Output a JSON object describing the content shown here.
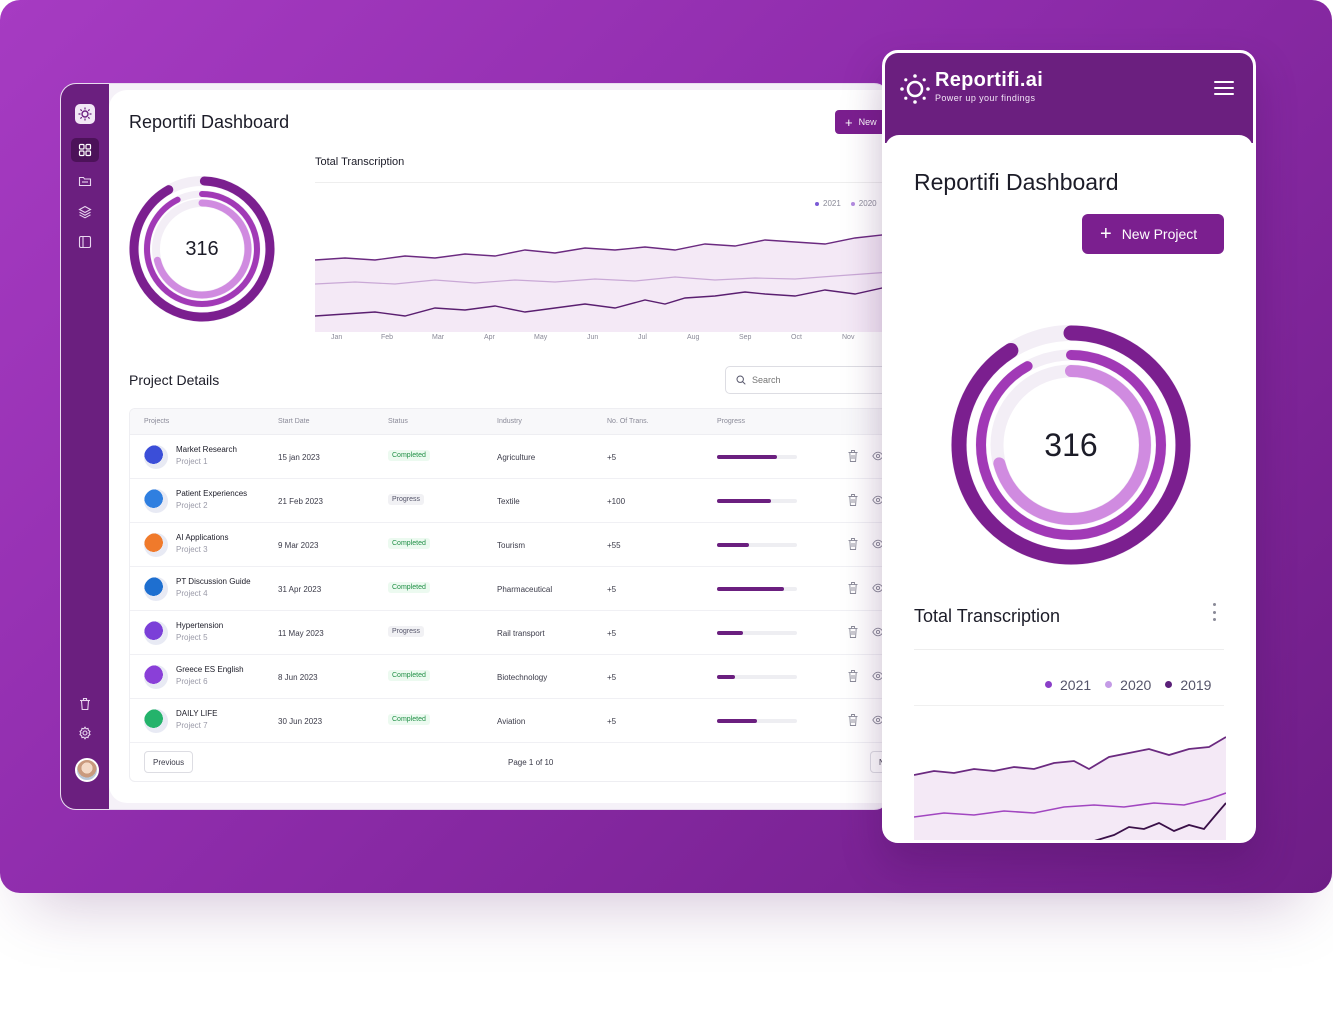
{
  "desktop": {
    "title": "Reportifi Dashboard",
    "new_button": "New",
    "total_count": "316",
    "chart_title": "Total Transcription",
    "legend": [
      {
        "label": "2021",
        "color": "#7b5bd6"
      },
      {
        "label": "2020",
        "color": "#b38be0"
      }
    ],
    "months": [
      "Jan",
      "Feb",
      "Mar",
      "Apr",
      "May",
      "Jun",
      "Jul",
      "Aug",
      "Sep",
      "Oct",
      "Nov"
    ],
    "project_details_title": "Project Details",
    "search_placeholder": "Search",
    "columns": [
      "Projects",
      "Start Date",
      "Status",
      "Industry",
      "No. Of Trans.",
      "Progress"
    ],
    "rows": [
      {
        "name": "Market Research",
        "sub": "Project 1",
        "date": "15 jan 2023",
        "status": "Completed",
        "industry": "Agriculture",
        "trans": "+5",
        "progress": 0.75,
        "icon_color": "#3b4ed8"
      },
      {
        "name": "Patient Experiences",
        "sub": "Project 2",
        "date": "21 Feb 2023",
        "status": "Progress",
        "industry": "Textile",
        "trans": "+100",
        "progress": 0.67,
        "icon_color": "#2f7fe0"
      },
      {
        "name": "AI Applications",
        "sub": "Project 3",
        "date": "9 Mar 2023",
        "status": "Completed",
        "industry": "Tourism",
        "trans": "+55",
        "progress": 0.4,
        "icon_color": "#f07a2b"
      },
      {
        "name": "PT Discussion Guide",
        "sub": "Project 4",
        "date": "31 Apr 2023",
        "status": "Completed",
        "industry": "Pharmaceutical",
        "trans": "+5",
        "progress": 0.84,
        "icon_color": "#1e6fd0"
      },
      {
        "name": "Hypertension",
        "sub": "Project 5",
        "date": "11 May 2023",
        "status": "Progress",
        "industry": "Rail transport",
        "trans": "+5",
        "progress": 0.32,
        "icon_color": "#7b3fd8"
      },
      {
        "name": "Greece ES English",
        "sub": "Project 6",
        "date": "8 Jun 2023",
        "status": "Completed",
        "industry": "Biotechnology",
        "trans": "+5",
        "progress": 0.22,
        "icon_color": "#8a3fd8"
      },
      {
        "name": "DAILY LIFE",
        "sub": "Project 7",
        "date": "30 Jun 2023",
        "status": "Completed",
        "industry": "Aviation",
        "trans": "+5",
        "progress": 0.5,
        "icon_color": "#24b36b"
      }
    ],
    "previous_label": "Previous",
    "page_label": "Page 1 of 10",
    "next_label": "N"
  },
  "mobile": {
    "brand": "Reportifi.ai",
    "tagline": "Power up your findings",
    "title": "Reportifi Dashboard",
    "new_button": "New Project",
    "total_count": "316",
    "chart_title": "Total Transcription",
    "legend": [
      {
        "label": "2021",
        "color": "#8a3fc8"
      },
      {
        "label": "2020",
        "color": "#c49be6"
      },
      {
        "label": "2019",
        "color": "#5a1f78"
      }
    ]
  },
  "colors": {
    "primary": "#6b1f7f",
    "accent": "#7b1f8f",
    "completed_text": "#1f8f45"
  }
}
